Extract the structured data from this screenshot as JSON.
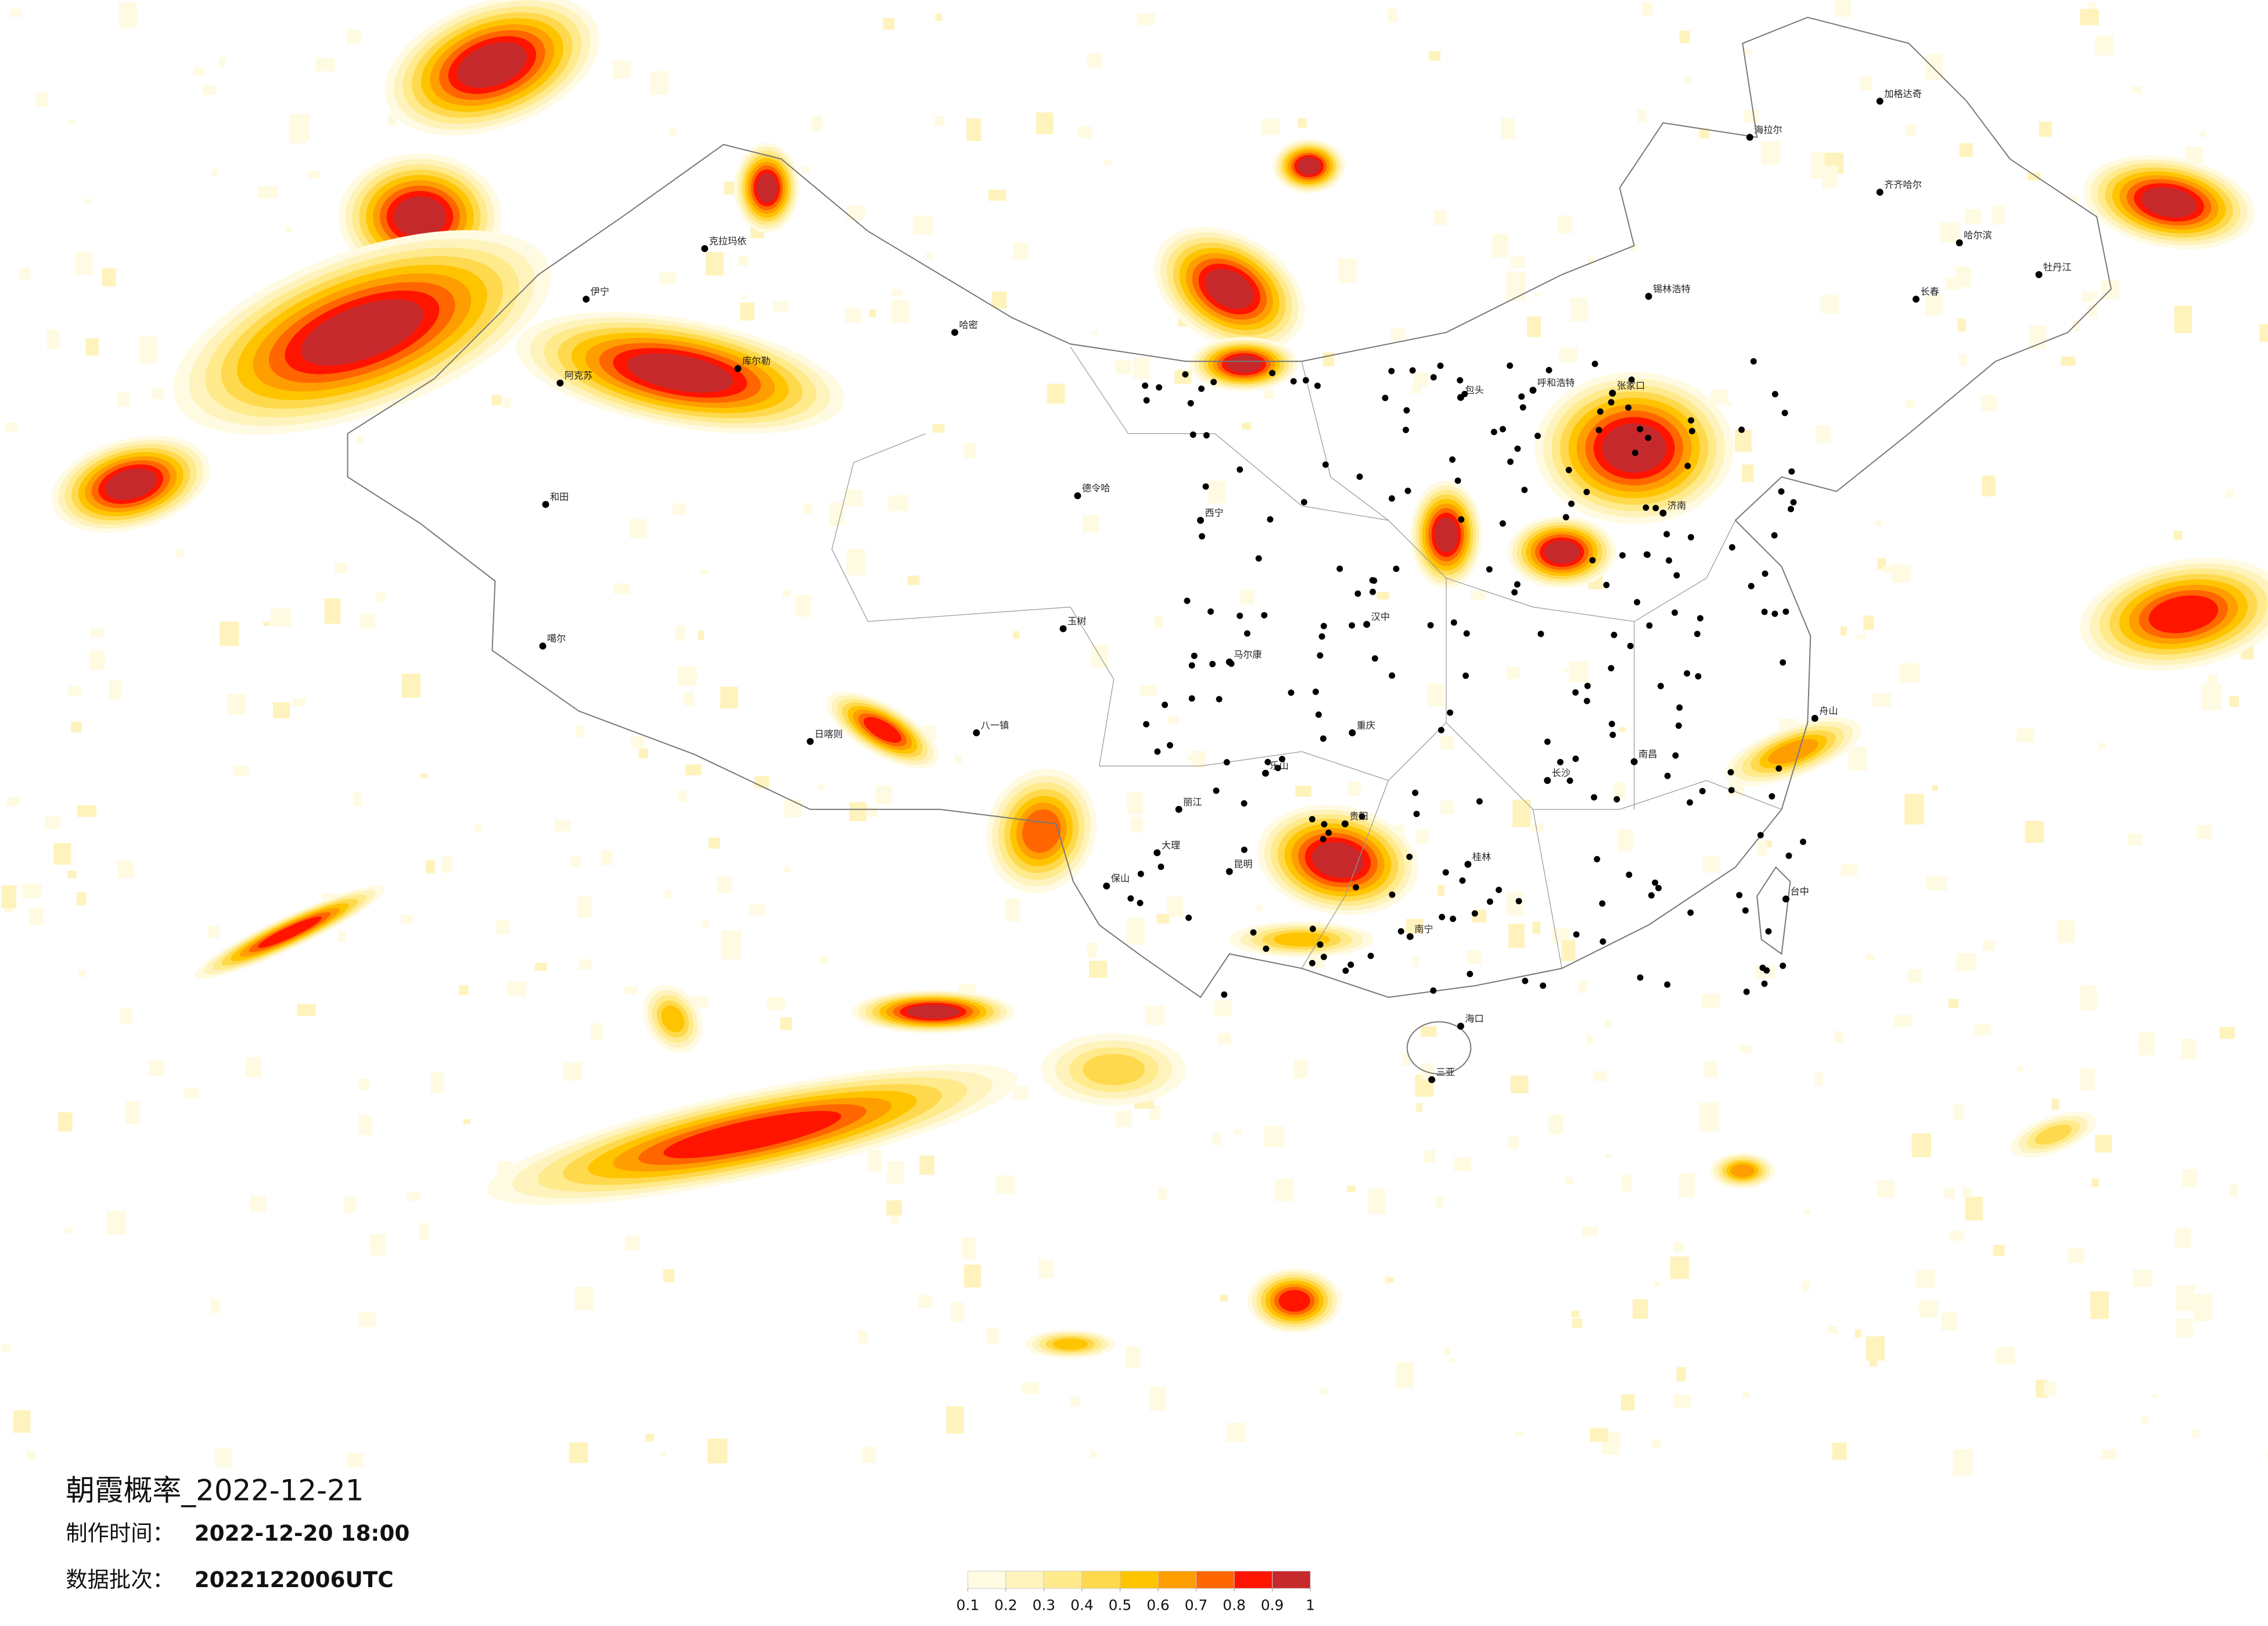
{
  "title": "朝霞概率_2022-12-21",
  "info": [
    {
      "label": "制作时间：",
      "value": "2022-12-20 18:00"
    },
    {
      "label": "数据批次：",
      "value": "2022122006UTC"
    }
  ],
  "colorbar": {
    "ticks": [
      0.1,
      0.2,
      0.3,
      0.4,
      0.5,
      0.6,
      0.7,
      0.8,
      0.9,
      1
    ],
    "colors": [
      "#fffbe3",
      "#fff3bd",
      "#ffea8c",
      "#ffd94d",
      "#ffc400",
      "#ff9e00",
      "#ff6600",
      "#ff1400",
      "#c6292c"
    ]
  },
  "cities": [
    {
      "name": "克拉玛依"
    },
    {
      "name": "伊宁"
    },
    {
      "name": "阿克苏"
    },
    {
      "name": "和田"
    },
    {
      "name": "库尔勒"
    },
    {
      "name": "哈密"
    },
    {
      "name": "德令哈"
    },
    {
      "name": "噶尔"
    },
    {
      "name": "日喀则"
    },
    {
      "name": "八一镇"
    },
    {
      "name": "玉树"
    },
    {
      "name": "马尔康"
    },
    {
      "name": "乐山"
    },
    {
      "name": "大理"
    },
    {
      "name": "昆明"
    },
    {
      "name": "保山"
    },
    {
      "name": "南宁"
    },
    {
      "name": "海口"
    },
    {
      "name": "三亚"
    },
    {
      "name": "台中"
    },
    {
      "name": "哈尔滨"
    },
    {
      "name": "长春"
    },
    {
      "name": "呼和浩特"
    },
    {
      "name": "西宁"
    },
    {
      "name": "包头"
    },
    {
      "name": "锡林浩特"
    },
    {
      "name": "海拉尔"
    },
    {
      "name": "加格达奇"
    },
    {
      "name": "齐齐哈尔"
    },
    {
      "name": "张家口"
    },
    {
      "name": "济南"
    },
    {
      "name": "南昌"
    },
    {
      "name": "长沙"
    },
    {
      "name": "桂林"
    },
    {
      "name": "贵阳"
    },
    {
      "name": "重庆"
    },
    {
      "name": "汉中"
    },
    {
      "name": "牡丹江"
    },
    {
      "name": "丽江"
    },
    {
      "name": "舟山"
    }
  ]
}
